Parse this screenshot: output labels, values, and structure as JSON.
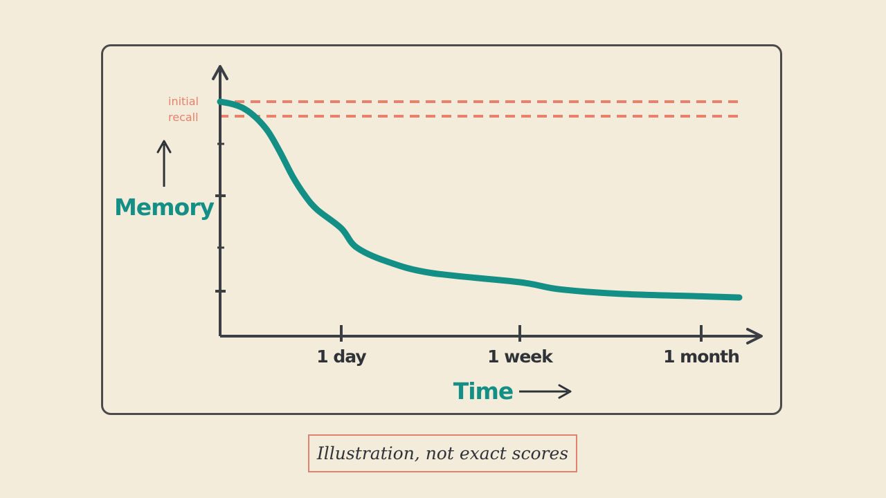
{
  "caption": "Illustration, not exact scores",
  "colors": {
    "curve": "#138f86",
    "reference": "#e8806c",
    "axis": "#3b3f44",
    "background": "#f4ecdb"
  },
  "chart_data": {
    "type": "line",
    "title": "",
    "xlabel": "Time",
    "ylabel": "Memory",
    "x_ticks": [
      {
        "label": "1 day",
        "x": 1
      },
      {
        "label": "1 week",
        "x": 7
      },
      {
        "label": "1 month",
        "x": 30
      }
    ],
    "reference_line": {
      "label_line1": "initial",
      "label_line2": "recall",
      "y": 100
    },
    "series": [
      {
        "values": [
          {
            "x": 0,
            "y": 100
          },
          {
            "x": 0.1,
            "y": 99
          },
          {
            "x": 0.2,
            "y": 97
          },
          {
            "x": 0.3,
            "y": 93
          },
          {
            "x": 0.4,
            "y": 87
          },
          {
            "x": 0.5,
            "y": 78
          },
          {
            "x": 0.6,
            "y": 68
          },
          {
            "x": 0.7,
            "y": 60
          },
          {
            "x": 0.8,
            "y": 54
          },
          {
            "x": 1,
            "y": 46
          },
          {
            "x": 1.5,
            "y": 38
          },
          {
            "x": 2.5,
            "y": 32
          },
          {
            "x": 4,
            "y": 27
          },
          {
            "x": 7,
            "y": 23
          },
          {
            "x": 12,
            "y": 20
          },
          {
            "x": 20,
            "y": 18
          },
          {
            "x": 30,
            "y": 17
          },
          {
            "x": 35,
            "y": 16.5
          }
        ]
      }
    ]
  }
}
